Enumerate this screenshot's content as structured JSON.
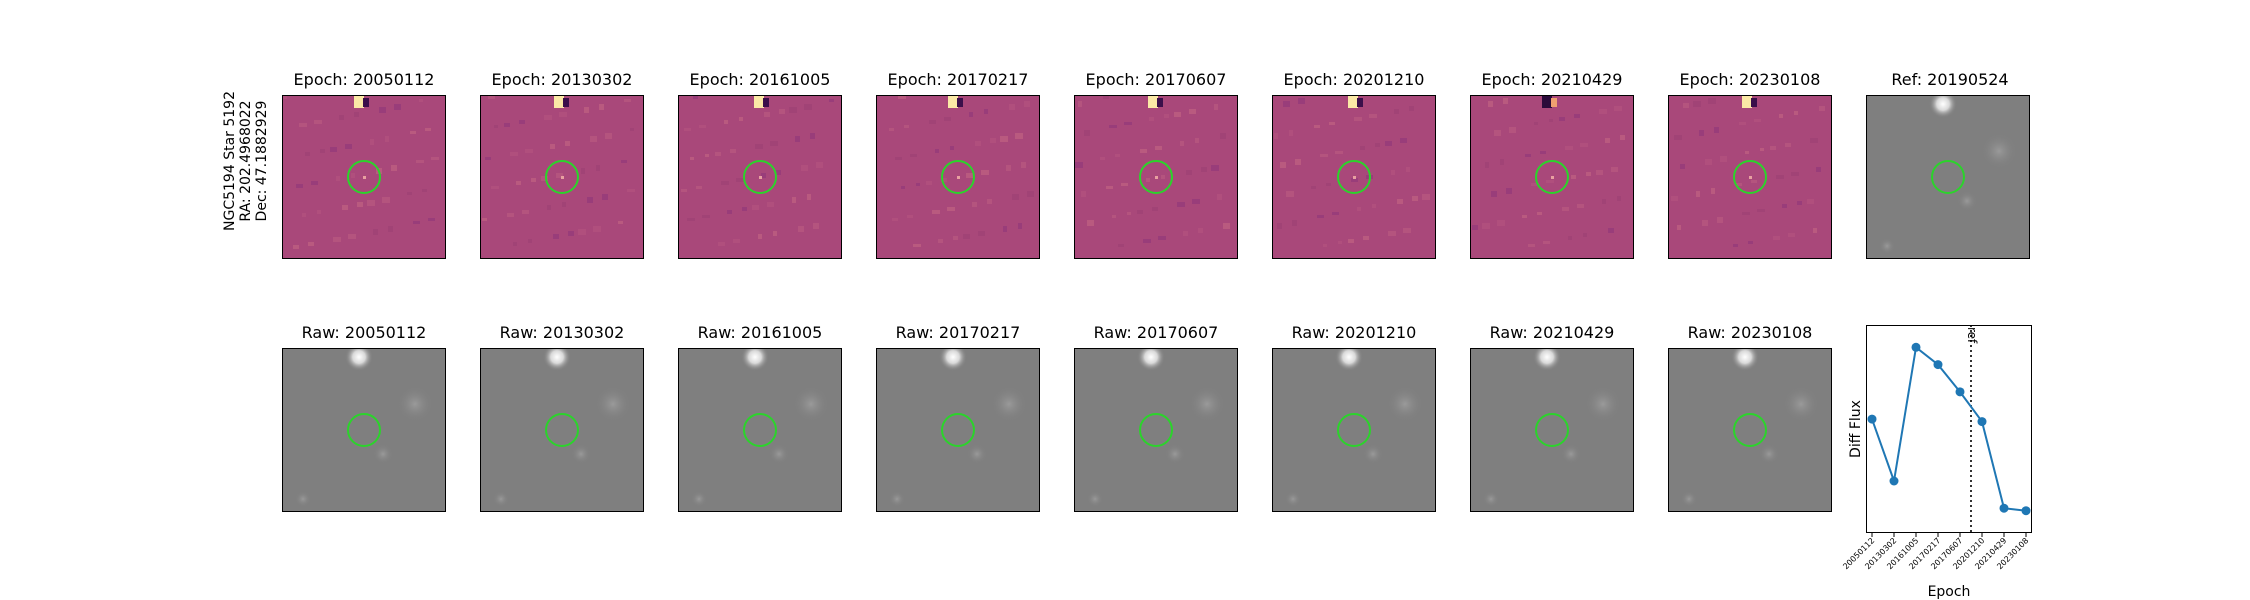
{
  "target": {
    "name": "NGC5194 Star 5192",
    "ra": "RA: 202.4968022",
    "dec": "Dec: 47.1882929"
  },
  "diff_panels": [
    {
      "title": "Epoch: 20050112"
    },
    {
      "title": "Epoch: 20130302"
    },
    {
      "title": "Epoch: 20161005"
    },
    {
      "title": "Epoch: 20170217"
    },
    {
      "title": "Epoch: 20170607"
    },
    {
      "title": "Epoch: 20201210"
    },
    {
      "title": "Epoch: 20210429"
    },
    {
      "title": "Epoch: 20230108"
    }
  ],
  "ref_panel": {
    "title": "Ref: 20190524"
  },
  "raw_panels": [
    {
      "title": "Raw: 20050112"
    },
    {
      "title": "Raw: 20130302"
    },
    {
      "title": "Raw: 20161005"
    },
    {
      "title": "Raw: 20170217"
    },
    {
      "title": "Raw: 20170607"
    },
    {
      "title": "Raw: 20201210"
    },
    {
      "title": "Raw: 20210429"
    },
    {
      "title": "Raw: 20230108"
    }
  ],
  "colors": {
    "diff_colormap_base": "#a9487a",
    "raw_background": "#7f7f7f",
    "aperture_circle": "#2bd42b",
    "series_line": "#1f77b4"
  },
  "chart_data": {
    "type": "line",
    "xlabel": "Epoch",
    "ylabel": "Diff Flux",
    "x": [
      "20050112",
      "20130302",
      "20161005",
      "20170217",
      "20170607",
      "20201210",
      "20210429",
      "20230108"
    ],
    "values": [
      0.3,
      -0.95,
      1.75,
      1.4,
      0.85,
      0.25,
      -1.5,
      -1.55
    ],
    "ylim": [
      -2.0,
      2.2
    ],
    "ref_line": {
      "position": 4.5,
      "label": "ref",
      "style": "dotted"
    },
    "grid": false,
    "legend": "none"
  }
}
